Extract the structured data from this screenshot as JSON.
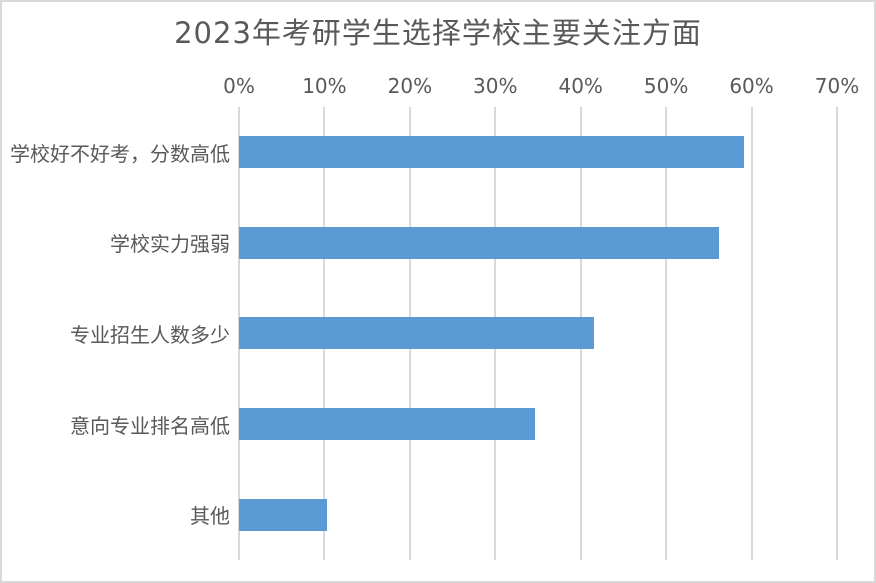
{
  "chart_data": {
    "type": "bar",
    "orientation": "horizontal",
    "title": "2023年考研学生选择学校主要关注方面",
    "categories": [
      "学校好不好考，分数高低",
      "学校实力强弱",
      "专业招生人数多少",
      "意向专业排名高低",
      "其他"
    ],
    "values": [
      59.1,
      56.2,
      41.5,
      34.6,
      10.3
    ],
    "value_unit": "%",
    "x_ticks": [
      "0%",
      "10%",
      "20%",
      "30%",
      "40%",
      "50%",
      "60%",
      "70%"
    ],
    "xlim": [
      0,
      70
    ],
    "xlabel": "",
    "ylabel": "",
    "axis_position": "top",
    "grid": "vertical",
    "legend": "none",
    "colors": {
      "bar": "#5B9BD5",
      "gridline": "#D9D9D9",
      "text": "#595959",
      "frame_border": "#D9D9D9",
      "background": "#FFFFFF"
    }
  }
}
